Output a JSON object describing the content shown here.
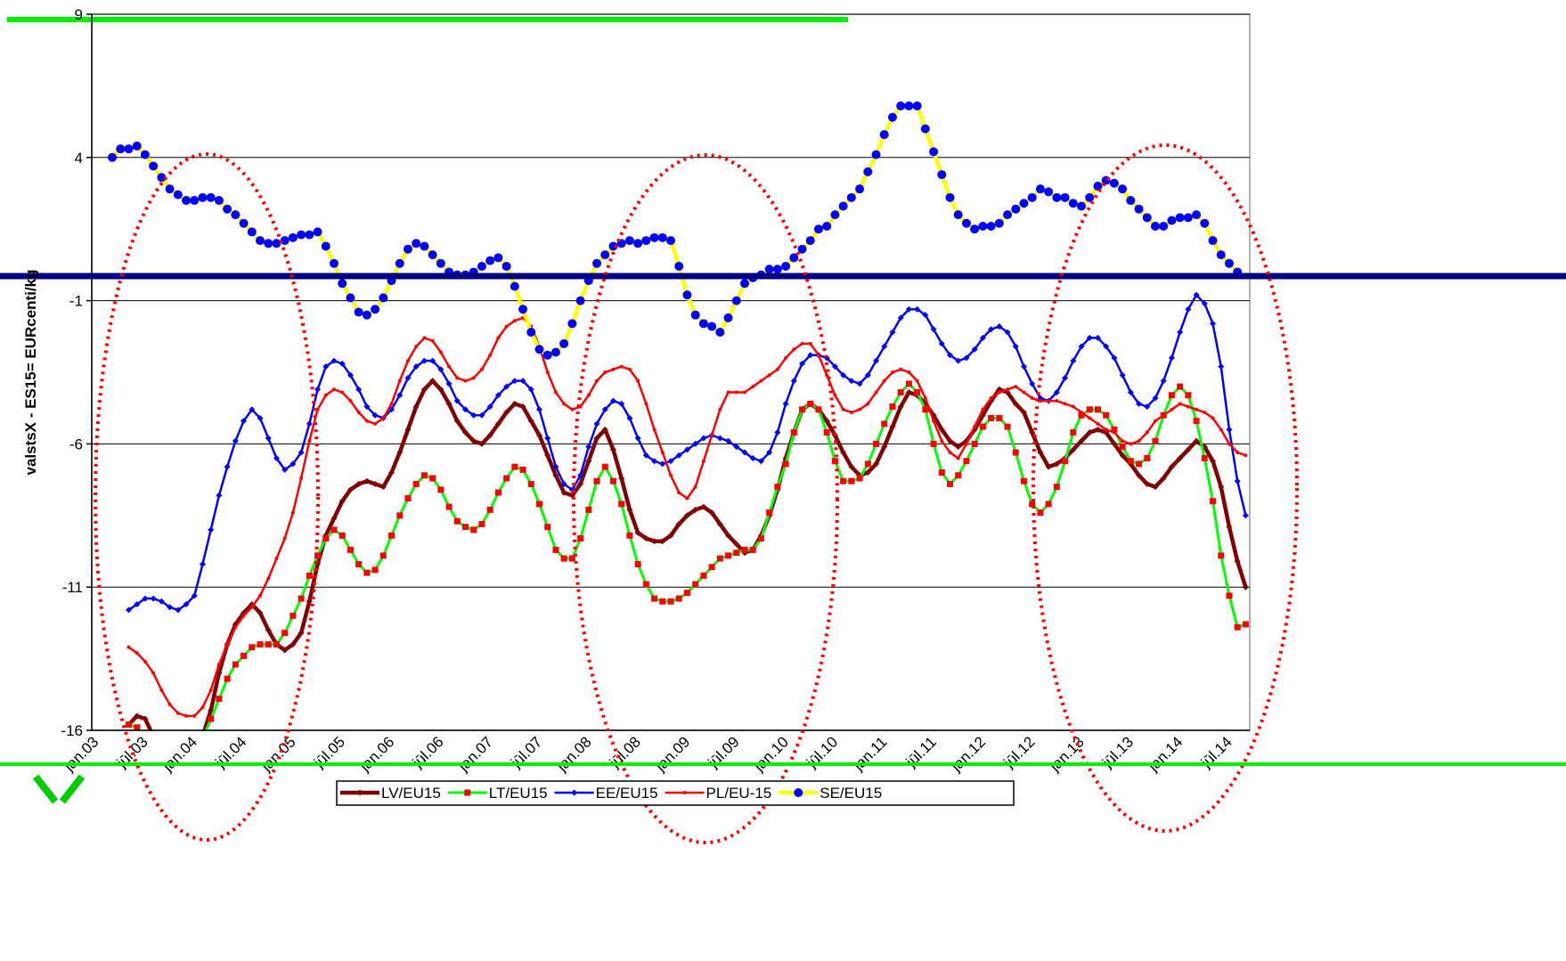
{
  "chart_data": {
    "type": "line",
    "y_label": "valstsX - ES15= EURcenti/kg",
    "ylim": [
      -16,
      9
    ],
    "yticks": [
      -16,
      -11,
      -6,
      -1,
      4,
      9
    ],
    "grid": true,
    "legend": "bottom",
    "categories": [
      "jan.03",
      null,
      null,
      null,
      null,
      null,
      "jūl.03",
      null,
      null,
      null,
      null,
      null,
      "jan.04",
      null,
      null,
      null,
      null,
      null,
      "jūl.04",
      null,
      null,
      null,
      null,
      null,
      "jan.05",
      null,
      null,
      null,
      null,
      null,
      "jūl.05",
      null,
      null,
      null,
      null,
      null,
      "jan.06",
      null,
      null,
      null,
      null,
      null,
      "jūl.06",
      null,
      null,
      null,
      null,
      null,
      "jan.07",
      null,
      null,
      null,
      null,
      null,
      "jūl.07",
      null,
      null,
      null,
      null,
      null,
      "jan.08",
      null,
      null,
      null,
      null,
      null,
      "jūl.08",
      null,
      null,
      null,
      null,
      null,
      "jan.09",
      null,
      null,
      null,
      null,
      null,
      "jūl.09",
      null,
      null,
      null,
      null,
      null,
      "jan.10",
      null,
      null,
      null,
      null,
      null,
      "jūl.10",
      null,
      null,
      null,
      null,
      null,
      "jan.11",
      null,
      null,
      null,
      null,
      null,
      "jūl.11",
      null,
      null,
      null,
      null,
      null,
      "jan.12",
      null,
      null,
      null,
      null,
      null,
      "jūl.12",
      null,
      null,
      null,
      null,
      null,
      "jan.13",
      null,
      null,
      null,
      null,
      null,
      "jūl.13",
      null,
      null,
      null,
      null,
      null,
      "jan.14",
      null,
      null,
      null,
      null,
      null,
      "jūl.14",
      null,
      null
    ],
    "series": [
      {
        "name": "LV/EU15",
        "color": "#800000",
        "marker_color": "#800000",
        "marker": "diamond",
        "width": 4.5,
        "values": [
          null,
          null,
          null,
          null,
          -15.8,
          -15.5,
          -15.6,
          -16.2,
          -16.8,
          -17.2,
          -17.4,
          -17.3,
          -16.9,
          -16.2,
          -15.3,
          -14.0,
          -13.0,
          -12.3,
          -11.9,
          -11.6,
          -11.9,
          -12.5,
          -13.0,
          -13.2,
          -13.0,
          -12.6,
          -11.5,
          -10.2,
          -9.2,
          -8.6,
          -8.0,
          -7.6,
          -7.4,
          -7.3,
          -7.4,
          -7.5,
          -7.0,
          -6.3,
          -5.5,
          -4.7,
          -4.1,
          -3.8,
          -4.1,
          -4.6,
          -5.2,
          -5.6,
          -5.9,
          -6.0,
          -5.7,
          -5.3,
          -4.9,
          -4.6,
          -4.7,
          -5.2,
          -5.7,
          -6.4,
          -7.1,
          -7.7,
          -7.8,
          -7.4,
          -6.6,
          -5.8,
          -5.5,
          -6.2,
          -7.2,
          -8.3,
          -9.1,
          -9.3,
          -9.4,
          -9.4,
          -9.2,
          -8.8,
          -8.5,
          -8.3,
          -8.2,
          -8.4,
          -8.8,
          -9.2,
          -9.5,
          -9.8,
          -9.7,
          -9.2,
          -8.5,
          -7.6,
          -6.5,
          -5.6,
          -4.8,
          -4.6,
          -4.8,
          -5.2,
          -5.7,
          -6.3,
          -6.8,
          -7.1,
          -7.0,
          -6.7,
          -6.1,
          -5.4,
          -4.7,
          -4.2,
          -4.3,
          -4.6,
          -5.0,
          -5.5,
          -5.9,
          -6.1,
          -5.9,
          -5.5,
          -5.0,
          -4.5,
          -4.1,
          -4.2,
          -4.6,
          -4.9,
          -5.6,
          -6.3,
          -6.8,
          -6.7,
          -6.5,
          -6.2,
          -5.9,
          -5.6,
          -5.5,
          -5.6,
          -6.0,
          -6.4,
          -6.7,
          -7.1,
          -7.4,
          -7.5,
          -7.2,
          -6.8,
          -6.5,
          -6.2,
          -5.9,
          -6.1,
          -6.6,
          -7.5,
          -8.9,
          -10.1,
          -11.0
        ]
      },
      {
        "name": "LT/EU15",
        "color": "#00ff00",
        "marker_color": "#ff0000",
        "marker": "square",
        "width": 3,
        "values": [
          null,
          null,
          null,
          null,
          -15.8,
          -15.9,
          -16.4,
          -17.0,
          -17.5,
          -17.8,
          -17.8,
          -17.5,
          -17.0,
          -16.3,
          -15.6,
          -14.9,
          -14.2,
          -13.7,
          -13.4,
          -13.1,
          -13.0,
          -13.0,
          -13.0,
          -12.6,
          -12.0,
          -11.4,
          -10.6,
          -9.9,
          -9.3,
          -9.0,
          -9.2,
          -9.7,
          -10.2,
          -10.5,
          -10.4,
          -9.9,
          -9.2,
          -8.5,
          -7.9,
          -7.4,
          -7.1,
          -7.2,
          -7.6,
          -8.2,
          -8.7,
          -8.9,
          -9.0,
          -8.8,
          -8.3,
          -7.7,
          -7.2,
          -6.8,
          -6.9,
          -7.4,
          -8.1,
          -8.9,
          -9.7,
          -10.0,
          -10.0,
          -9.3,
          -8.3,
          -7.3,
          -6.8,
          -7.3,
          -8.1,
          -9.2,
          -10.2,
          -10.9,
          -11.4,
          -11.5,
          -11.5,
          -11.4,
          -11.2,
          -10.9,
          -10.6,
          -10.3,
          -10.0,
          -9.9,
          -9.8,
          -9.7,
          -9.7,
          -9.3,
          -8.4,
          -7.5,
          -6.7,
          -5.6,
          -4.8,
          -4.6,
          -4.8,
          -5.6,
          -6.6,
          -7.3,
          -7.3,
          -7.2,
          -6.7,
          -6.0,
          -5.3,
          -4.7,
          -4.2,
          -3.9,
          -4.2,
          -4.8,
          -6.0,
          -7.0,
          -7.4,
          -7.1,
          -6.6,
          -6.0,
          -5.4,
          -5.1,
          -5.1,
          -5.4,
          -6.3,
          -7.3,
          -8.1,
          -8.4,
          -8.1,
          -7.5,
          -6.6,
          -5.6,
          -5.0,
          -4.8,
          -4.8,
          -5.0,
          -5.5,
          -6.1,
          -6.6,
          -6.7,
          -6.5,
          -5.9,
          -5.0,
          -4.3,
          -4.0,
          -4.3,
          -5.2,
          -6.5,
          -8.0,
          -9.9,
          -11.3,
          -12.4,
          -12.3
        ]
      },
      {
        "name": "EE/EU15",
        "color": "#0000ff",
        "marker_color": "#0000ff",
        "marker": "diamond",
        "width": 2.5,
        "values": [
          null,
          null,
          null,
          null,
          -11.8,
          -11.6,
          -11.4,
          -11.4,
          -11.5,
          -11.7,
          -11.8,
          -11.6,
          -11.3,
          -10.2,
          -9.0,
          -7.8,
          -6.8,
          -5.9,
          -5.2,
          -4.8,
          -5.1,
          -5.8,
          -6.5,
          -6.9,
          -6.7,
          -6.3,
          -5.3,
          -4.1,
          -3.3,
          -3.1,
          -3.2,
          -3.6,
          -4.1,
          -4.7,
          -5.0,
          -5.1,
          -4.8,
          -4.3,
          -3.7,
          -3.3,
          -3.1,
          -3.1,
          -3.4,
          -3.9,
          -4.5,
          -4.8,
          -5.0,
          -5.0,
          -4.7,
          -4.3,
          -4.0,
          -3.8,
          -3.8,
          -4.1,
          -4.8,
          -5.8,
          -6.8,
          -7.4,
          -7.6,
          -7.1,
          -6.1,
          -5.3,
          -4.8,
          -4.5,
          -4.6,
          -5.1,
          -5.8,
          -6.4,
          -6.6,
          -6.7,
          -6.6,
          -6.4,
          -6.2,
          -6.0,
          -5.8,
          -5.7,
          -5.8,
          -5.9,
          -6.1,
          -6.3,
          -6.5,
          -6.6,
          -6.3,
          -5.6,
          -4.6,
          -3.8,
          -3.2,
          -2.9,
          -2.9,
          -3.0,
          -3.3,
          -3.6,
          -3.8,
          -3.9,
          -3.6,
          -3.1,
          -2.6,
          -2.1,
          -1.6,
          -1.3,
          -1.3,
          -1.5,
          -2.0,
          -2.5,
          -2.9,
          -3.1,
          -3.0,
          -2.7,
          -2.3,
          -2.0,
          -1.9,
          -2.1,
          -2.6,
          -3.3,
          -3.9,
          -4.4,
          -4.5,
          -4.2,
          -3.7,
          -3.1,
          -2.6,
          -2.3,
          -2.3,
          -2.6,
          -3.0,
          -3.6,
          -4.2,
          -4.6,
          -4.7,
          -4.4,
          -3.8,
          -3.0,
          -2.1,
          -1.3,
          -0.8,
          -1.1,
          -1.8,
          -3.3,
          -5.5,
          -7.3,
          -8.5
        ]
      },
      {
        "name": "PL/EU-15",
        "color": "#ff0000",
        "marker_color": "#ff0000",
        "marker": "dot",
        "width": 2.5,
        "values": [
          null,
          null,
          null,
          null,
          -13.1,
          -13.3,
          -13.6,
          -14.0,
          -14.6,
          -15.1,
          -15.4,
          -15.5,
          -15.5,
          -15.2,
          -14.6,
          -13.7,
          -13.0,
          -12.4,
          -12.0,
          -11.7,
          -11.3,
          -10.7,
          -10.0,
          -9.3,
          -8.4,
          -7.2,
          -5.9,
          -4.8,
          -4.3,
          -4.1,
          -4.2,
          -4.5,
          -4.9,
          -5.2,
          -5.3,
          -5.1,
          -4.6,
          -3.8,
          -3.1,
          -2.6,
          -2.3,
          -2.4,
          -2.8,
          -3.3,
          -3.7,
          -3.8,
          -3.7,
          -3.4,
          -2.9,
          -2.3,
          -1.9,
          -1.7,
          -1.6,
          -1.9,
          -2.6,
          -3.5,
          -4.2,
          -4.6,
          -4.8,
          -4.7,
          -4.3,
          -3.8,
          -3.5,
          -3.4,
          -3.3,
          -3.4,
          -3.8,
          -4.6,
          -5.5,
          -6.3,
          -7.1,
          -7.7,
          -7.9,
          -7.5,
          -6.6,
          -5.7,
          -4.8,
          -4.2,
          -4.2,
          -4.2,
          -4.0,
          -3.8,
          -3.6,
          -3.4,
          -3.0,
          -2.7,
          -2.5,
          -2.5,
          -2.9,
          -3.6,
          -4.3,
          -4.8,
          -4.9,
          -4.8,
          -4.6,
          -4.2,
          -3.8,
          -3.5,
          -3.4,
          -3.5,
          -3.8,
          -4.4,
          -5.2,
          -5.9,
          -6.3,
          -6.5,
          -6.0,
          -5.4,
          -4.8,
          -4.4,
          -4.2,
          -4.1,
          -4.0,
          -4.2,
          -4.4,
          -4.5,
          -4.5,
          -4.5,
          -4.6,
          -4.7,
          -4.9,
          -5.1,
          -5.3,
          -5.5,
          -5.6,
          -5.9,
          -6.0,
          -5.9,
          -5.6,
          -5.2,
          -5.0,
          -4.8,
          -4.6,
          -4.7,
          -4.8,
          -4.9,
          -5.1,
          -5.5,
          -6.0,
          -6.3,
          -6.4
        ]
      },
      {
        "name": "SE/EU15",
        "color": "#ffff00",
        "marker_color": "#0000ff",
        "marker": "circle",
        "width": 4.5,
        "values": [
          null,
          null,
          4.0,
          4.3,
          4.3,
          4.4,
          4.1,
          3.7,
          3.3,
          2.9,
          2.7,
          2.5,
          2.5,
          2.6,
          2.6,
          2.5,
          2.2,
          2.0,
          1.7,
          1.4,
          1.1,
          1.0,
          1.0,
          1.1,
          1.2,
          1.3,
          1.3,
          1.4,
          0.9,
          0.3,
          -0.4,
          -0.9,
          -1.4,
          -1.5,
          -1.3,
          -0.9,
          -0.3,
          0.3,
          0.8,
          1.0,
          0.9,
          0.6,
          0.3,
          0.0,
          -0.1,
          -0.1,
          0.0,
          0.2,
          0.4,
          0.5,
          0.2,
          -0.5,
          -1.3,
          -2.1,
          -2.7,
          -2.9,
          -2.8,
          -2.5,
          -1.8,
          -1.0,
          -0.3,
          0.3,
          0.6,
          0.9,
          1.0,
          1.1,
          1.0,
          1.1,
          1.2,
          1.2,
          1.1,
          0.2,
          -0.8,
          -1.5,
          -1.8,
          -1.9,
          -2.1,
          -1.6,
          -1.0,
          -0.4,
          -0.2,
          -0.1,
          0.1,
          0.1,
          0.2,
          0.5,
          0.8,
          1.1,
          1.5,
          1.6,
          2.0,
          2.3,
          2.6,
          2.9,
          3.5,
          4.1,
          4.8,
          5.4,
          5.8,
          5.8,
          5.8,
          5.0,
          4.2,
          3.4,
          2.6,
          2.0,
          1.7,
          1.5,
          1.6,
          1.6,
          1.7,
          2.0,
          2.2,
          2.4,
          2.6,
          2.9,
          2.8,
          2.6,
          2.6,
          2.4,
          2.3,
          2.6,
          3.0,
          3.2,
          3.1,
          2.9,
          2.5,
          2.2,
          1.9,
          1.6,
          1.6,
          1.8,
          1.9,
          1.9,
          2.0,
          1.7,
          1.1,
          0.6,
          0.3,
          0.0,
          null
        ]
      }
    ]
  }
}
